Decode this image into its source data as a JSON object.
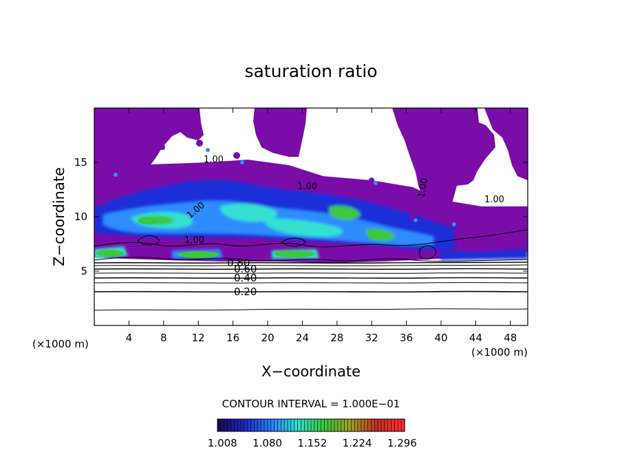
{
  "chart_data": {
    "type": "heatmap",
    "title": "saturation ratio",
    "xlabel": "X−coordinate",
    "ylabel": "Z−coordinate",
    "x_unit_left": "(×1000 m)",
    "x_unit_right": "(×1000 m)",
    "xlim": [
      0,
      50
    ],
    "ylim": [
      0,
      20
    ],
    "x_ticks": [
      4,
      8,
      12,
      16,
      20,
      24,
      28,
      32,
      36,
      40,
      44,
      48
    ],
    "y_ticks": [
      5,
      10,
      15
    ],
    "contour_interval_text": "CONTOUR INTERVAL = 1.000E−01",
    "contour_labels": [
      {
        "text": "0.20",
        "x": 17.5,
        "z": 3.1
      },
      {
        "text": "0.40",
        "x": 17.5,
        "z": 4.4
      },
      {
        "text": "0.60",
        "x": 17.5,
        "z": 5.2
      },
      {
        "text": "0.80",
        "x": 16.5,
        "z": 5.8
      },
      {
        "text": "1.00",
        "x": 13.5,
        "z": 7.7
      },
      {
        "text": "1.00",
        "x": 11.5,
        "z": 10.6
      },
      {
        "text": "1.00",
        "x": 13.5,
        "z": 15.3
      },
      {
        "text": "1.00",
        "x": 24.5,
        "z": 12.7
      },
      {
        "text": "1.00",
        "x": 37.5,
        "z": 12.5
      },
      {
        "text": "1.00",
        "x": 45.0,
        "z": 11.8
      }
    ],
    "colorbar": {
      "ticks": [
        "1.008",
        "1.080",
        "1.152",
        "1.224",
        "1.296"
      ],
      "range": [
        1.0,
        1.3
      ],
      "colors": [
        "#1a0a5e",
        "#2028c8",
        "#2a80ff",
        "#30e0d0",
        "#38c838",
        "#a0a020",
        "#c03020",
        "#ff3030"
      ]
    },
    "fill_color_subsaturated_high": "#7a0da8"
  }
}
